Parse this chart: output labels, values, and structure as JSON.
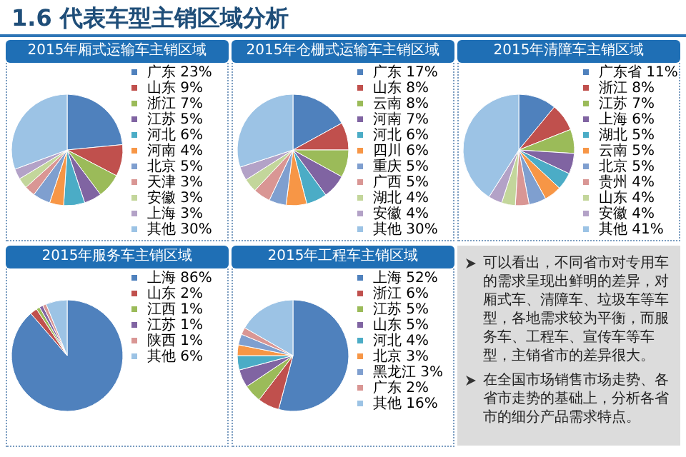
{
  "chart_data": [
    {
      "type": "other",
      "title": "1.6 代表车型主销区域分析"
    },
    {
      "type": "pie",
      "title": "2015年厢式运输车主销区域",
      "categories": [
        "广东",
        "山东",
        "浙江",
        "江苏",
        "河北",
        "河南",
        "北京",
        "天津",
        "安徽",
        "上海",
        "其他"
      ],
      "values": [
        23,
        9,
        7,
        5,
        6,
        4,
        5,
        3,
        3,
        3,
        30
      ],
      "value_labels": [
        "23%",
        "9%",
        "7%",
        "5%",
        "6%",
        "4%",
        "5%",
        "3%",
        "3%",
        "3%",
        "30%"
      ],
      "colors": [
        "#4f81bd",
        "#c0504d",
        "#9bbb59",
        "#8064a2",
        "#4bacc6",
        "#f79646",
        "#7f9fcf",
        "#d99694",
        "#c3d69b",
        "#b3a2c7",
        "#9cc3e5"
      ],
      "legend": "right"
    },
    {
      "type": "pie",
      "title": "2015年仓栅式运输车主销区域",
      "categories": [
        "广东",
        "山东",
        "云南",
        "河南",
        "河北",
        "四川",
        "重庆",
        "广西",
        "湖北",
        "安徽",
        "其他"
      ],
      "values": [
        17,
        8,
        8,
        7,
        6,
        6,
        5,
        5,
        4,
        4,
        30
      ],
      "value_labels": [
        "17%",
        "8%",
        "8%",
        "7%",
        "6%",
        "6%",
        "5%",
        "5%",
        "4%",
        "4%",
        "30%"
      ],
      "colors": [
        "#4f81bd",
        "#c0504d",
        "#9bbb59",
        "#8064a2",
        "#4bacc6",
        "#f79646",
        "#7f9fcf",
        "#d99694",
        "#c3d69b",
        "#b3a2c7",
        "#9cc3e5"
      ],
      "legend": "right"
    },
    {
      "type": "pie",
      "title": "2015年清障车主销区域",
      "categories": [
        "广东省",
        "浙江",
        "江苏",
        "上海",
        "湖北",
        "云南",
        "北京",
        "贵州",
        "山东",
        "安徽",
        "其他"
      ],
      "values": [
        11,
        8,
        7,
        6,
        5,
        5,
        5,
        4,
        4,
        4,
        41
      ],
      "value_labels": [
        "11%",
        "8%",
        "7%",
        "6%",
        "5%",
        "5%",
        "5%",
        "4%",
        "4%",
        "4%",
        "41%"
      ],
      "colors": [
        "#4f81bd",
        "#c0504d",
        "#9bbb59",
        "#8064a2",
        "#4bacc6",
        "#f79646",
        "#7f9fcf",
        "#d99694",
        "#c3d69b",
        "#b3a2c7",
        "#9cc3e5"
      ],
      "legend": "right"
    },
    {
      "type": "pie",
      "title": "2015年服务车主销区域",
      "categories": [
        "上海",
        "山东",
        "江西",
        "江苏",
        "陕西",
        "其他"
      ],
      "values": [
        86,
        2,
        1,
        1,
        1,
        6
      ],
      "value_labels": [
        "86%",
        "2%",
        "1%",
        "1%",
        "1%",
        "6%"
      ],
      "colors": [
        "#4f81bd",
        "#c0504d",
        "#9bbb59",
        "#8064a2",
        "#d99694",
        "#9cc3e5"
      ],
      "legend": "right"
    },
    {
      "type": "pie",
      "title": "2015年工程车主销区域",
      "categories": [
        "上海",
        "浙江",
        "江苏",
        "山东",
        "河北",
        "北京",
        "黑龙江",
        "广东",
        "其他"
      ],
      "values": [
        52,
        6,
        5,
        5,
        4,
        3,
        3,
        2,
        16
      ],
      "value_labels": [
        "52%",
        "6%",
        "5%",
        "5%",
        "4%",
        "3%",
        "3%",
        "2%",
        "16%"
      ],
      "colors": [
        "#4f81bd",
        "#c0504d",
        "#9bbb59",
        "#8064a2",
        "#4bacc6",
        "#f79646",
        "#7f9fcf",
        "#d99694",
        "#9cc3e5"
      ],
      "legend": "right"
    },
    {
      "type": "other",
      "annotations": [
        "可以看出，不同省市对专用车的需求呈现出鲜明的差异，对厢式车、清障车、垃圾车等车型，各地需求较为平衡，而服务车、工程车、宣传车等车型，主销省市的差异很大。",
        "在全国市场销售市场走势、各省市走势的基础上，分析各省市的细分产品需求特点。"
      ]
    }
  ]
}
